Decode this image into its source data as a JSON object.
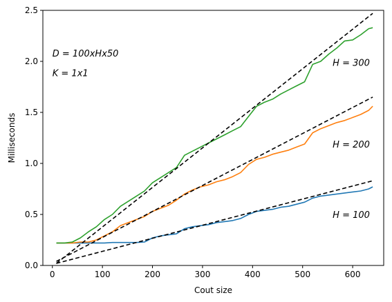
{
  "chart_data": {
    "type": "line",
    "xlabel": "Cout size",
    "ylabel": "Milliseconds",
    "xlim": [
      -19,
      662
    ],
    "ylim": [
      0,
      2.5
    ],
    "xticks": [
      0,
      100,
      200,
      300,
      400,
      500,
      600
    ],
    "yticks": [
      0.0,
      0.5,
      1.0,
      1.5,
      2.0,
      2.5
    ],
    "ytick_labels": [
      "0.0",
      "0.5",
      "1.0",
      "1.5",
      "2.0",
      "2.5"
    ],
    "grid": false,
    "series": [
      {
        "color": "#1f77b4",
        "x": [
          8,
          24,
          40,
          56,
          72,
          88,
          104,
          120,
          136,
          152,
          168,
          184,
          200,
          216,
          232,
          248,
          264,
          280,
          296,
          312,
          328,
          344,
          360,
          376,
          392,
          408,
          424,
          440,
          456,
          472,
          488,
          504,
          520,
          536,
          552,
          568,
          584,
          600,
          616,
          632,
          640
        ],
        "values": [
          0.22,
          0.22,
          0.22,
          0.22,
          0.22,
          0.22,
          0.22,
          0.225,
          0.225,
          0.225,
          0.225,
          0.23,
          0.27,
          0.29,
          0.3,
          0.31,
          0.36,
          0.38,
          0.39,
          0.4,
          0.42,
          0.43,
          0.44,
          0.46,
          0.5,
          0.53,
          0.54,
          0.55,
          0.57,
          0.58,
          0.6,
          0.62,
          0.66,
          0.68,
          0.69,
          0.7,
          0.71,
          0.72,
          0.73,
          0.75,
          0.77
        ]
      },
      {
        "color": "#ff7f0e",
        "x": [
          8,
          24,
          40,
          56,
          72,
          88,
          104,
          120,
          136,
          152,
          168,
          184,
          200,
          216,
          232,
          248,
          264,
          280,
          296,
          312,
          328,
          344,
          360,
          376,
          392,
          408,
          424,
          440,
          456,
          472,
          488,
          504,
          520,
          536,
          552,
          568,
          584,
          600,
          616,
          632,
          640
        ],
        "values": [
          0.22,
          0.22,
          0.22,
          0.23,
          0.23,
          0.25,
          0.29,
          0.33,
          0.39,
          0.42,
          0.45,
          0.48,
          0.53,
          0.56,
          0.59,
          0.64,
          0.7,
          0.74,
          0.77,
          0.79,
          0.82,
          0.84,
          0.87,
          0.91,
          0.99,
          1.04,
          1.06,
          1.09,
          1.11,
          1.13,
          1.16,
          1.19,
          1.3,
          1.34,
          1.37,
          1.4,
          1.42,
          1.45,
          1.48,
          1.52,
          1.56
        ]
      },
      {
        "color": "#2ca02c",
        "x": [
          8,
          24,
          40,
          56,
          72,
          88,
          104,
          120,
          136,
          152,
          168,
          184,
          200,
          216,
          232,
          248,
          264,
          280,
          296,
          312,
          328,
          344,
          360,
          376,
          392,
          408,
          424,
          440,
          456,
          472,
          488,
          504,
          520,
          536,
          552,
          568,
          584,
          600,
          616,
          632,
          640
        ],
        "values": [
          0.22,
          0.22,
          0.23,
          0.27,
          0.33,
          0.38,
          0.45,
          0.5,
          0.58,
          0.63,
          0.68,
          0.73,
          0.81,
          0.86,
          0.91,
          0.96,
          1.08,
          1.12,
          1.16,
          1.2,
          1.24,
          1.28,
          1.32,
          1.36,
          1.46,
          1.56,
          1.6,
          1.63,
          1.68,
          1.72,
          1.76,
          1.8,
          1.97,
          2.0,
          2.07,
          2.13,
          2.2,
          2.21,
          2.26,
          2.32,
          2.33
        ]
      }
    ],
    "fit_lines": [
      {
        "color": "#000000",
        "style": "dashed",
        "x": [
          8,
          640
        ],
        "values": [
          0.02,
          2.47
        ]
      },
      {
        "color": "#000000",
        "style": "dashed",
        "x": [
          8,
          640
        ],
        "values": [
          0.04,
          1.65
        ]
      },
      {
        "color": "#000000",
        "style": "dashed",
        "x": [
          8,
          640
        ],
        "values": [
          0.02,
          0.83
        ]
      }
    ],
    "annotations": [
      {
        "text": "D = 100xHx50",
        "x": 0,
        "y": 2.08
      },
      {
        "text": "K = 1x1",
        "x": 0,
        "y": 1.89
      },
      {
        "text": "H = 300",
        "x": 560,
        "y": 1.99
      },
      {
        "text": "H = 200",
        "x": 560,
        "y": 1.19
      },
      {
        "text": "H = 100",
        "x": 560,
        "y": 0.5
      }
    ]
  }
}
